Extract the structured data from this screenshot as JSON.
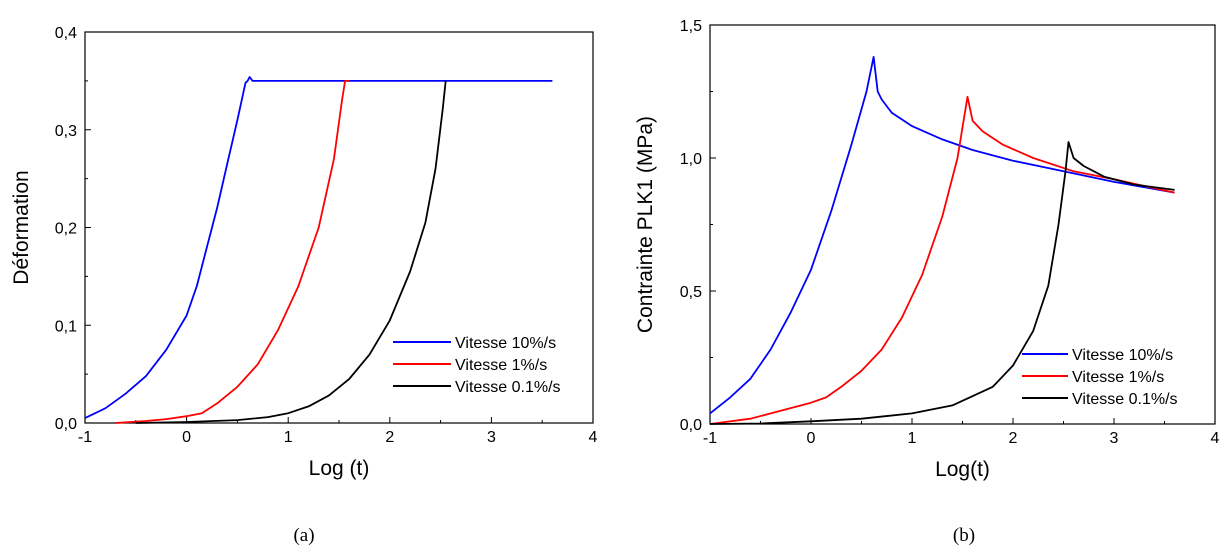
{
  "chart_data": [
    {
      "type": "line",
      "caption": "(a)",
      "xlabel": "Log (t)",
      "ylabel": "Déformation",
      "xlim": [
        -1,
        4
      ],
      "ylim": [
        0,
        0.4
      ],
      "xticks": [
        "-1",
        "0",
        "1",
        "2",
        "3",
        "4"
      ],
      "yticks": [
        "0,0",
        "0,1",
        "0,2",
        "0,3",
        "0,4"
      ],
      "legend_position": "bottom-right",
      "series": [
        {
          "name": "Vitesse 10%/s",
          "color": "#0000ff",
          "x": [
            -1.0,
            -0.8,
            -0.6,
            -0.4,
            -0.2,
            0.0,
            0.1,
            0.2,
            0.3,
            0.4,
            0.5,
            0.58,
            0.6,
            0.62,
            0.65,
            0.7,
            1.0,
            2.0,
            3.0,
            3.6
          ],
          "y": [
            0.005,
            0.015,
            0.03,
            0.048,
            0.075,
            0.11,
            0.14,
            0.18,
            0.22,
            0.265,
            0.31,
            0.348,
            0.35,
            0.354,
            0.35,
            0.35,
            0.35,
            0.35,
            0.35,
            0.35
          ]
        },
        {
          "name": "Vitesse 1%/s",
          "color": "#ff0000",
          "x": [
            -0.7,
            -0.4,
            -0.2,
            0.0,
            0.15,
            0.3,
            0.5,
            0.7,
            0.9,
            1.1,
            1.3,
            1.45,
            1.53,
            1.56,
            1.6
          ],
          "y": [
            0.0,
            0.002,
            0.004,
            0.007,
            0.01,
            0.02,
            0.037,
            0.06,
            0.095,
            0.14,
            0.2,
            0.27,
            0.33,
            0.35,
            0.35
          ]
        },
        {
          "name": "Vitesse 0.1%/s",
          "color": "#000000",
          "x": [
            -0.5,
            0.0,
            0.5,
            0.8,
            1.0,
            1.2,
            1.4,
            1.6,
            1.8,
            2.0,
            2.2,
            2.35,
            2.45,
            2.52,
            2.55
          ],
          "y": [
            0.0,
            0.001,
            0.003,
            0.006,
            0.01,
            0.017,
            0.028,
            0.045,
            0.07,
            0.105,
            0.155,
            0.205,
            0.26,
            0.32,
            0.35
          ]
        }
      ]
    },
    {
      "type": "line",
      "caption": "(b)",
      "xlabel": "Log(t)",
      "ylabel": "Contrainte PLK1 (MPa)",
      "xlim": [
        -1,
        4
      ],
      "ylim": [
        0,
        1.5
      ],
      "xticks": [
        "-1",
        "0",
        "1",
        "2",
        "3",
        "4"
      ],
      "yticks": [
        "0,0",
        "0,5",
        "1,0",
        "1,5"
      ],
      "legend_position": "bottom-right",
      "series": [
        {
          "name": "Vitesse 10%/s",
          "color": "#0000ff",
          "x": [
            -1.0,
            -0.8,
            -0.6,
            -0.4,
            -0.2,
            0.0,
            0.2,
            0.4,
            0.55,
            0.62,
            0.66,
            0.7,
            0.8,
            1.0,
            1.3,
            1.6,
            2.0,
            2.5,
            3.0,
            3.6
          ],
          "y": [
            0.04,
            0.1,
            0.17,
            0.28,
            0.42,
            0.58,
            0.8,
            1.05,
            1.25,
            1.38,
            1.25,
            1.22,
            1.17,
            1.12,
            1.07,
            1.03,
            0.99,
            0.95,
            0.91,
            0.87
          ]
        },
        {
          "name": "Vitesse 1%/s",
          "color": "#ff0000",
          "x": [
            -1.0,
            -0.6,
            -0.3,
            0.0,
            0.15,
            0.3,
            0.5,
            0.7,
            0.9,
            1.1,
            1.3,
            1.45,
            1.55,
            1.6,
            1.7,
            1.9,
            2.2,
            2.6,
            3.0,
            3.6
          ],
          "y": [
            0.0,
            0.02,
            0.05,
            0.08,
            0.1,
            0.14,
            0.2,
            0.28,
            0.4,
            0.56,
            0.78,
            1.0,
            1.23,
            1.14,
            1.1,
            1.05,
            1.0,
            0.95,
            0.92,
            0.87
          ]
        },
        {
          "name": "Vitesse 0.1%/s",
          "color": "#000000",
          "x": [
            -1.0,
            -0.5,
            0.0,
            0.5,
            1.0,
            1.4,
            1.8,
            2.0,
            2.2,
            2.35,
            2.45,
            2.52,
            2.55,
            2.6,
            2.7,
            2.9,
            3.2,
            3.6
          ],
          "y": [
            0.0,
            0.002,
            0.01,
            0.02,
            0.04,
            0.07,
            0.14,
            0.22,
            0.35,
            0.52,
            0.75,
            0.95,
            1.06,
            1.0,
            0.97,
            0.93,
            0.9,
            0.88
          ]
        }
      ]
    }
  ]
}
